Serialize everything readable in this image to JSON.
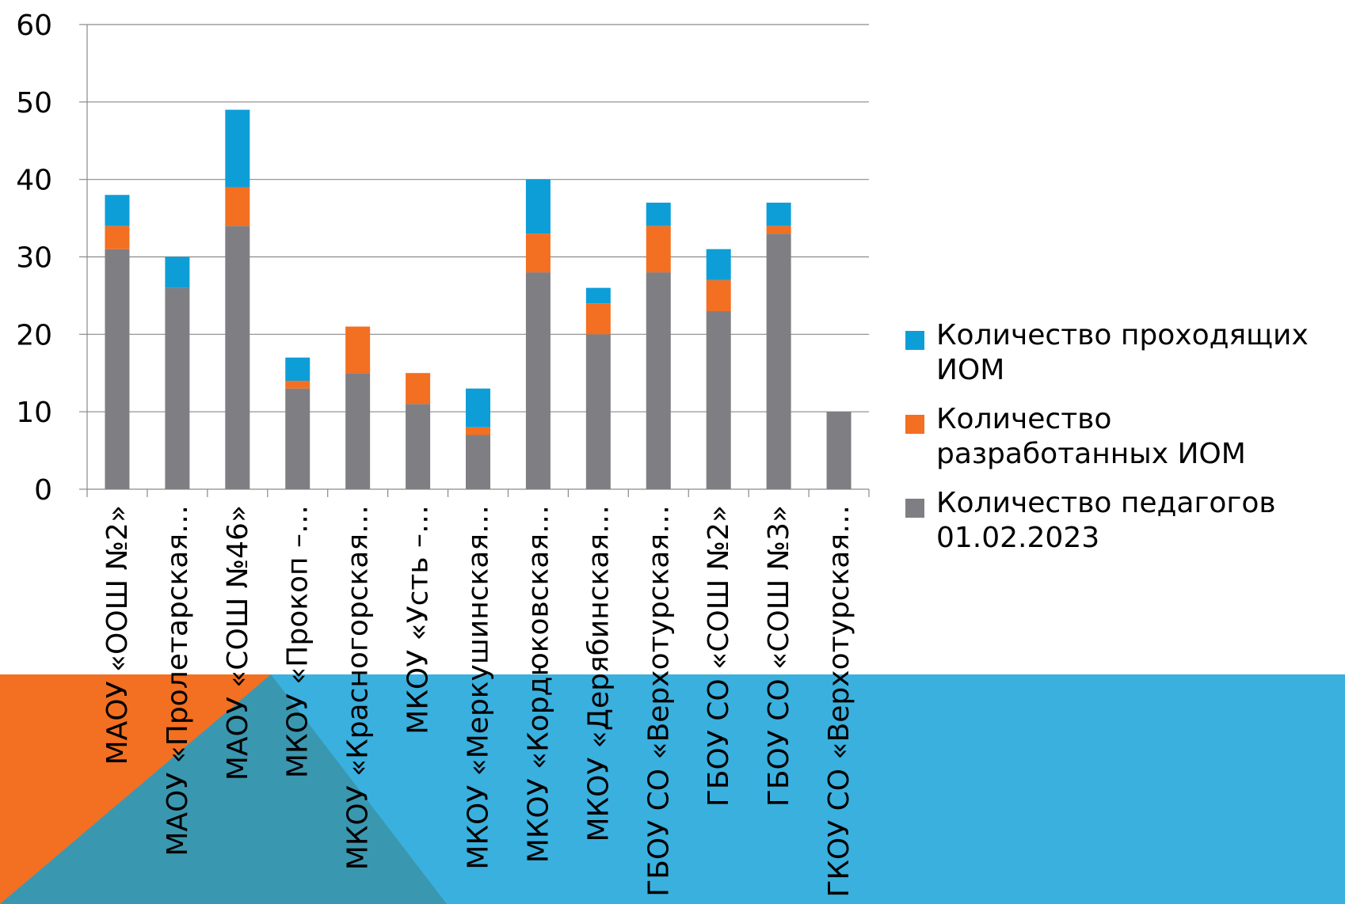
{
  "chart_data": {
    "type": "bar",
    "stacked": true,
    "categories": [
      "МАОУ «ООШ №2»",
      "МАОУ «Пролетарская…",
      "МАОУ «СОШ №46»",
      "МКОУ «Прокоп –…",
      "МКОУ «Красногорская…",
      "МКОУ «Усть –…",
      "МКОУ «Меркушинская…",
      "МКОУ «Кордюковская…",
      "МКОУ «Дерябинская…",
      "ГБОУ СО «Верхотурская…",
      "ГБОУ СО «СОШ №2»",
      "ГБОУ СО «СОШ №3»",
      "ГКОУ СО «Верхотурская…"
    ],
    "series": [
      {
        "name": "Количество педагогов 01.02.2023",
        "color": "#7f7f83",
        "values": [
          31,
          26,
          34,
          13,
          15,
          11,
          7,
          28,
          20,
          28,
          23,
          33,
          10
        ]
      },
      {
        "name": "Количество разработанных ИОМ",
        "color": "#f36f21",
        "values": [
          3,
          0,
          5,
          1,
          6,
          4,
          1,
          5,
          4,
          6,
          4,
          1,
          0
        ]
      },
      {
        "name": "Количество проходящих ИОМ",
        "color": "#0d9ed8",
        "values": [
          4,
          4,
          10,
          3,
          0,
          0,
          5,
          7,
          2,
          3,
          4,
          3,
          0
        ]
      }
    ],
    "ylim": [
      0,
      60
    ],
    "yticks": [
      0,
      10,
      20,
      30,
      40,
      50,
      60
    ],
    "grid": true,
    "legend_position": "right",
    "legend_order": [
      2,
      1,
      0
    ]
  },
  "colors": {
    "background_orange": "#f36f21",
    "background_blue": "#3ab0de",
    "background_overlap": "#3a97b0",
    "gridline": "#8a8a8a"
  }
}
